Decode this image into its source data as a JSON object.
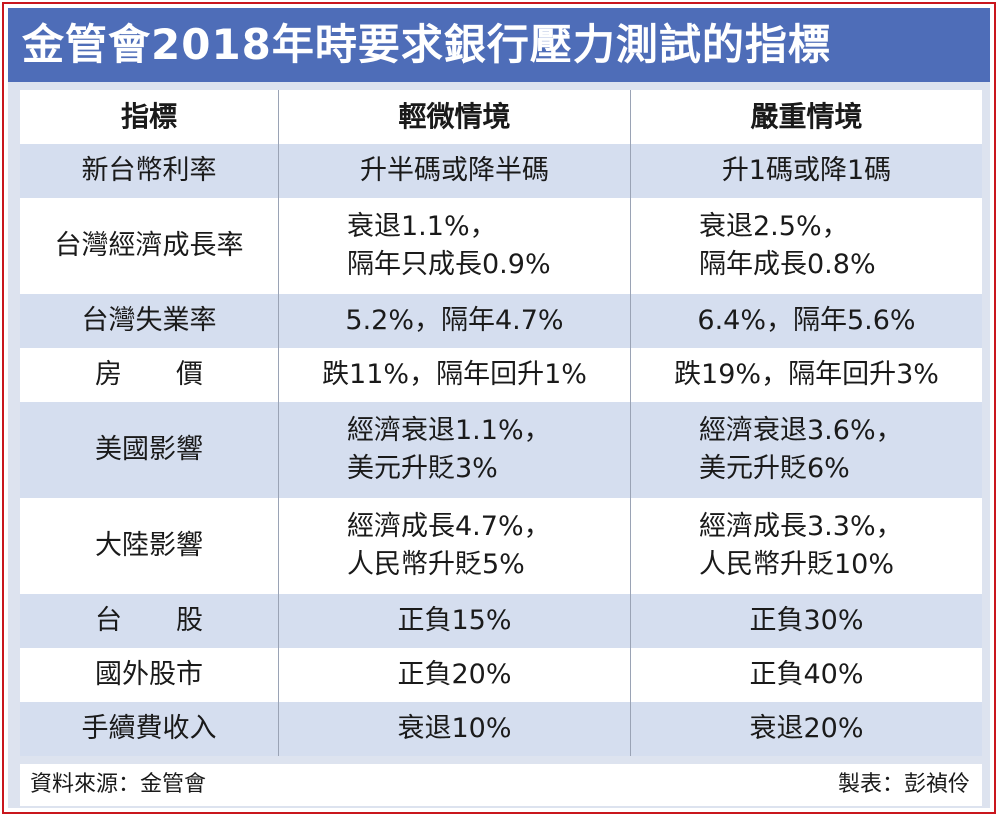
{
  "title": "金管會2018年時要求銀行壓力測試的指標",
  "headers": [
    "指標",
    "輕微情境",
    "嚴重情境"
  ],
  "rows": [
    {
      "indicator": "新台幣利率",
      "mild": [
        "升半碼或降半碼"
      ],
      "severe": [
        "升1碼或降1碼"
      ]
    },
    {
      "indicator": "台灣經濟成長率",
      "mild": [
        "衰退1.1%，",
        "隔年只成長0.9%"
      ],
      "severe": [
        "衰退2.5%，",
        "隔年成長0.8%"
      ]
    },
    {
      "indicator": "台灣失業率",
      "mild": [
        "5.2%，隔年4.7%"
      ],
      "severe": [
        "6.4%，隔年5.6%"
      ]
    },
    {
      "indicator": "房　　價",
      "mild": [
        "跌11%，隔年回升1%"
      ],
      "severe": [
        "跌19%，隔年回升3%"
      ]
    },
    {
      "indicator": "美國影響",
      "mild": [
        "經濟衰退1.1%，",
        "美元升貶3%"
      ],
      "severe": [
        "經濟衰退3.6%，",
        "美元升貶6%"
      ]
    },
    {
      "indicator": "大陸影響",
      "mild": [
        "經濟成長4.7%，",
        "人民幣升貶5%"
      ],
      "severe": [
        "經濟成長3.3%，",
        "人民幣升貶10%"
      ]
    },
    {
      "indicator": "台　　股",
      "mild": [
        "正負15%"
      ],
      "severe": [
        "正負30%"
      ]
    },
    {
      "indicator": "國外股市",
      "mild": [
        "正負20%"
      ],
      "severe": [
        "正負40%"
      ]
    },
    {
      "indicator": "手續費收入",
      "mild": [
        "衰退10%"
      ],
      "severe": [
        "衰退20%"
      ]
    }
  ],
  "footer": {
    "source": "資料來源：金管會",
    "maker": "製表：彭禎伶"
  }
}
